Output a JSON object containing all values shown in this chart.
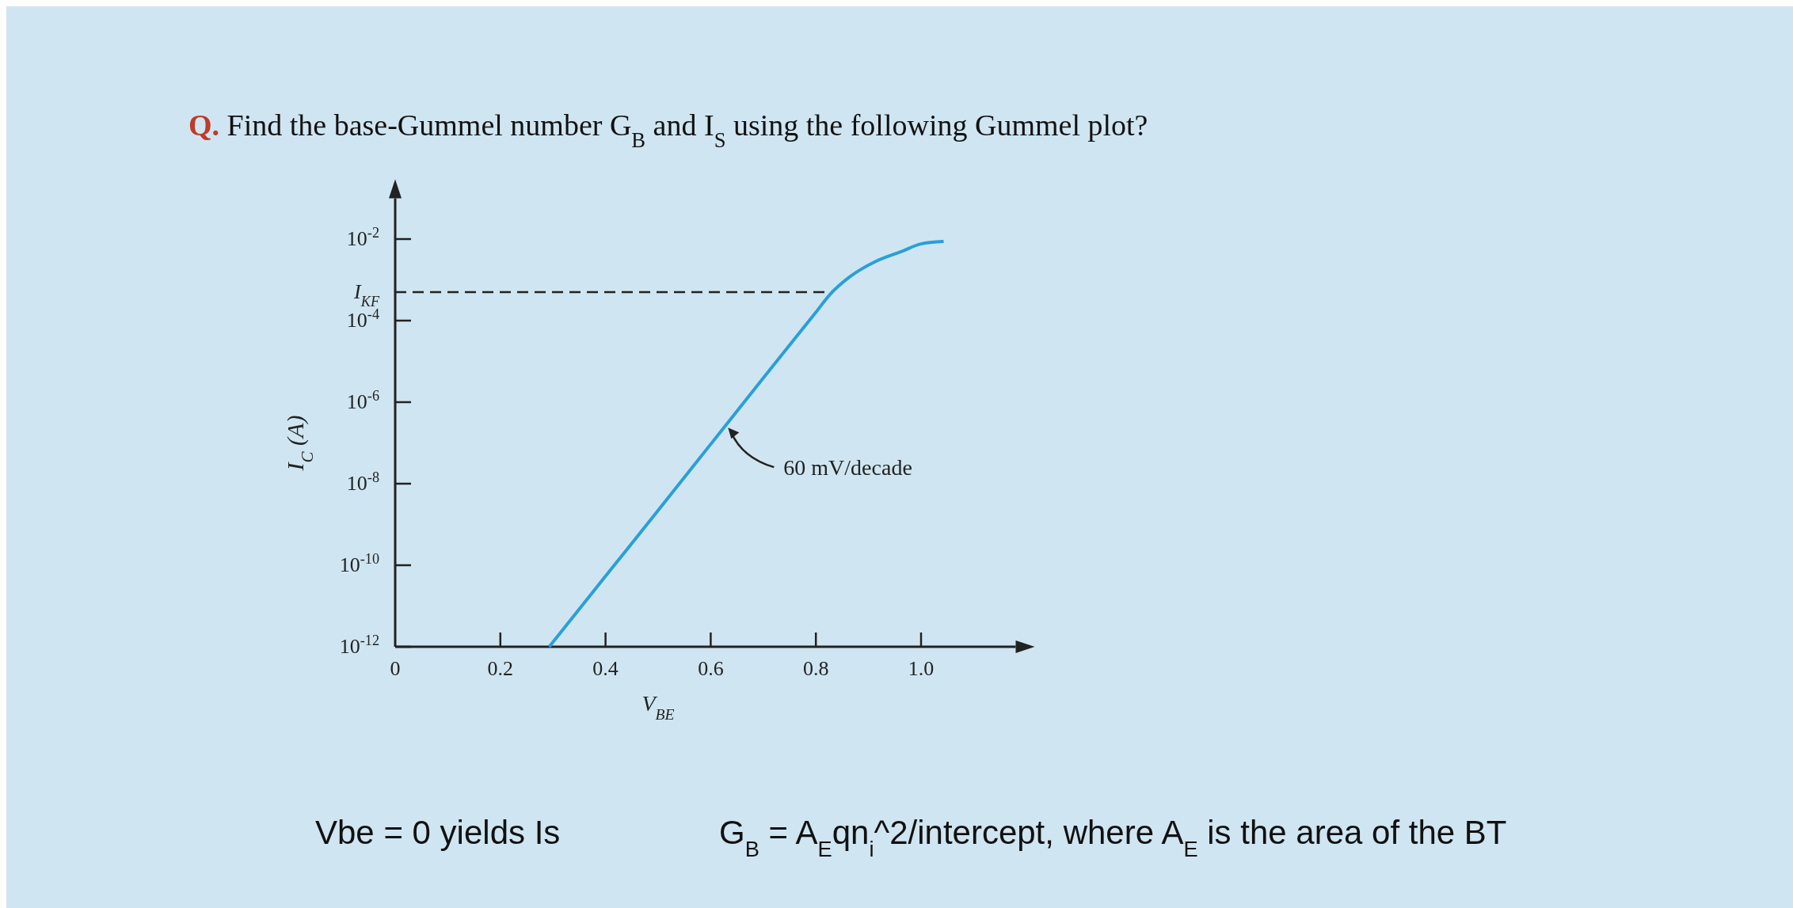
{
  "chart_data": {
    "type": "line",
    "title": "Q. Find the base-Gummel number G$_{B}$ and I$_{S}$ using the following Gummel plot?",
    "xlabel": "V$_{BE}$",
    "ylabel": "I$_{C}$ (A)",
    "log": "y",
    "x": [
      0.293,
      0.4,
      0.5,
      0.6,
      0.7,
      0.8,
      0.827,
      0.865,
      0.913,
      0.962,
      1.0,
      1.043
    ],
    "series": [
      {
        "color": "#2a9fd8",
        "values": [
          1e-12,
          5.4e-11,
          2.2e-09,
          9.3e-08,
          3.9e-06,
          0.00016,
          0.00044,
          0.0012,
          0.0028,
          0.0049,
          0.0076,
          0.0087
        ]
      }
    ],
    "xlim": [
      0,
      1.18
    ],
    "xticks": [
      0,
      0.2,
      0.4,
      0.6,
      0.8,
      "1.0"
    ],
    "ylim": [
      1e-12,
      0.1
    ],
    "yticks": [
      {
        "value": 1e-12,
        "label": "10$^{-12}$"
      },
      {
        "value": 1e-10,
        "label": "10$^{-10}$"
      },
      {
        "value": 1e-08,
        "label": "10$^{-8}$"
      },
      {
        "value": 1e-06,
        "label": "10$^{-6}$"
      },
      {
        "value": 0.0001,
        "label": "10$^{-4}$"
      },
      {
        "value": 0.01,
        "label": "10$^{-2}$"
      }
    ],
    "ref_lines": [
      {
        "axis": "y",
        "value": 0.0005,
        "label": "I$_{KF}$",
        "color": "#222222",
        "line_style": "dashed"
      }
    ],
    "annotations": [
      {
        "text": "60 mV/decade",
        "x": 0.63,
        "y": 2.6e-07
      },
      "Vbe = 0 yields Is",
      "G$_{B}$ = A$_{E}$qn$_{i}$^2/intercept,  where A$_{E}$ is the area of the BT"
    ],
    "grid": false,
    "marker": "none",
    "line_style": "solid"
  }
}
